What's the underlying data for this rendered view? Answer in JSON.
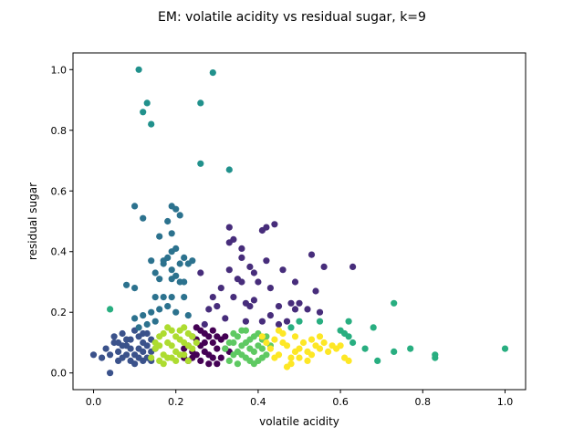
{
  "chart_data": {
    "type": "scatter",
    "title": "EM: volatile acidity vs residual sugar, k=9",
    "xlabel": "volatile acidity",
    "ylabel": "residual sugar",
    "xlim": [
      -0.05,
      1.05
    ],
    "ylim": [
      -0.055,
      1.055
    ],
    "xticks": [
      0.0,
      0.2,
      0.4,
      0.6,
      0.8,
      1.0
    ],
    "yticks": [
      0.0,
      0.2,
      0.4,
      0.6,
      0.8,
      1.0
    ],
    "xtick_labels": [
      "0.0",
      "0.2",
      "0.4",
      "0.6",
      "0.8",
      "1.0"
    ],
    "ytick_labels": [
      "0.0",
      "0.2",
      "0.4",
      "0.6",
      "0.8",
      "1.0"
    ],
    "grid": false,
    "clusters": [
      {
        "color": "#440154",
        "points": [
          [
            0.22,
            0.05
          ],
          [
            0.24,
            0.07
          ],
          [
            0.26,
            0.09
          ],
          [
            0.28,
            0.06
          ],
          [
            0.3,
            0.08
          ],
          [
            0.25,
            0.11
          ],
          [
            0.27,
            0.13
          ],
          [
            0.29,
            0.1
          ],
          [
            0.31,
            0.05
          ],
          [
            0.23,
            0.09
          ],
          [
            0.26,
            0.04
          ],
          [
            0.28,
            0.12
          ],
          [
            0.3,
            0.12
          ],
          [
            0.32,
            0.08
          ],
          [
            0.24,
            0.12
          ],
          [
            0.27,
            0.07
          ],
          [
            0.25,
            0.06
          ],
          [
            0.29,
            0.14
          ],
          [
            0.31,
            0.11
          ],
          [
            0.22,
            0.08
          ],
          [
            0.33,
            0.07
          ],
          [
            0.26,
            0.14
          ],
          [
            0.28,
            0.03
          ],
          [
            0.23,
            0.04
          ],
          [
            0.3,
            0.03
          ],
          [
            0.25,
            0.15
          ],
          [
            0.27,
            0.1
          ],
          [
            0.29,
            0.05
          ],
          [
            0.24,
            0.05
          ],
          [
            0.32,
            0.12
          ]
        ]
      },
      {
        "color": "#472d7b",
        "points": [
          [
            0.27,
            0.16
          ],
          [
            0.3,
            0.22
          ],
          [
            0.32,
            0.18
          ],
          [
            0.34,
            0.25
          ],
          [
            0.36,
            0.3
          ],
          [
            0.33,
            0.43
          ],
          [
            0.33,
            0.48
          ],
          [
            0.34,
            0.44
          ],
          [
            0.36,
            0.38
          ],
          [
            0.38,
            0.35
          ],
          [
            0.36,
            0.41
          ],
          [
            0.41,
            0.47
          ],
          [
            0.42,
            0.48
          ],
          [
            0.44,
            0.49
          ],
          [
            0.42,
            0.37
          ],
          [
            0.46,
            0.34
          ],
          [
            0.49,
            0.3
          ],
          [
            0.5,
            0.23
          ],
          [
            0.49,
            0.21
          ],
          [
            0.53,
            0.39
          ],
          [
            0.56,
            0.35
          ],
          [
            0.63,
            0.35
          ],
          [
            0.54,
            0.27
          ],
          [
            0.55,
            0.2
          ],
          [
            0.43,
            0.28
          ],
          [
            0.45,
            0.22
          ],
          [
            0.38,
            0.22
          ],
          [
            0.39,
            0.24
          ],
          [
            0.4,
            0.3
          ],
          [
            0.41,
            0.17
          ],
          [
            0.37,
            0.17
          ],
          [
            0.26,
            0.33
          ],
          [
            0.29,
            0.25
          ],
          [
            0.35,
            0.31
          ],
          [
            0.37,
            0.23
          ],
          [
            0.43,
            0.19
          ],
          [
            0.48,
            0.23
          ],
          [
            0.52,
            0.21
          ],
          [
            0.31,
            0.28
          ],
          [
            0.39,
            0.33
          ],
          [
            0.45,
            0.16
          ],
          [
            0.47,
            0.17
          ],
          [
            0.28,
            0.21
          ],
          [
            0.33,
            0.34
          ]
        ]
      },
      {
        "color": "#3b528b",
        "points": [
          [
            0.0,
            0.06
          ],
          [
            0.04,
            0.0
          ],
          [
            0.03,
            0.08
          ],
          [
            0.05,
            0.1
          ],
          [
            0.06,
            0.07
          ],
          [
            0.07,
            0.05
          ],
          [
            0.08,
            0.09
          ],
          [
            0.09,
            0.11
          ],
          [
            0.1,
            0.06
          ],
          [
            0.11,
            0.08
          ],
          [
            0.12,
            0.1
          ],
          [
            0.13,
            0.05
          ],
          [
            0.14,
            0.07
          ],
          [
            0.05,
            0.12
          ],
          [
            0.07,
            0.13
          ],
          [
            0.09,
            0.04
          ],
          [
            0.1,
            0.14
          ],
          [
            0.12,
            0.13
          ],
          [
            0.13,
            0.09
          ],
          [
            0.06,
            0.04
          ],
          [
            0.08,
            0.06
          ],
          [
            0.11,
            0.12
          ],
          [
            0.12,
            0.04
          ],
          [
            0.14,
            0.11
          ],
          [
            0.04,
            0.06
          ],
          [
            0.02,
            0.05
          ],
          [
            0.15,
            0.08
          ],
          [
            0.1,
            0.03
          ],
          [
            0.08,
            0.11
          ],
          [
            0.13,
            0.13
          ],
          [
            0.11,
            0.05
          ],
          [
            0.07,
            0.09
          ],
          [
            0.09,
            0.08
          ],
          [
            0.12,
            0.07
          ],
          [
            0.06,
            0.1
          ],
          [
            0.14,
            0.04
          ]
        ]
      },
      {
        "color": "#2c728e",
        "points": [
          [
            0.1,
            0.55
          ],
          [
            0.12,
            0.51
          ],
          [
            0.19,
            0.55
          ],
          [
            0.18,
            0.5
          ],
          [
            0.2,
            0.54
          ],
          [
            0.21,
            0.52
          ],
          [
            0.19,
            0.46
          ],
          [
            0.2,
            0.41
          ],
          [
            0.19,
            0.4
          ],
          [
            0.16,
            0.45
          ],
          [
            0.17,
            0.37
          ],
          [
            0.18,
            0.38
          ],
          [
            0.17,
            0.36
          ],
          [
            0.19,
            0.34
          ],
          [
            0.21,
            0.36
          ],
          [
            0.22,
            0.38
          ],
          [
            0.2,
            0.32
          ],
          [
            0.23,
            0.36
          ],
          [
            0.24,
            0.37
          ],
          [
            0.22,
            0.3
          ],
          [
            0.14,
            0.37
          ],
          [
            0.15,
            0.33
          ],
          [
            0.16,
            0.31
          ],
          [
            0.19,
            0.31
          ],
          [
            0.21,
            0.3
          ],
          [
            0.08,
            0.29
          ],
          [
            0.1,
            0.28
          ],
          [
            0.15,
            0.25
          ],
          [
            0.17,
            0.25
          ],
          [
            0.19,
            0.25
          ],
          [
            0.22,
            0.25
          ],
          [
            0.18,
            0.22
          ],
          [
            0.2,
            0.2
          ],
          [
            0.23,
            0.19
          ],
          [
            0.1,
            0.18
          ],
          [
            0.12,
            0.19
          ],
          [
            0.14,
            0.2
          ],
          [
            0.16,
            0.21
          ],
          [
            0.13,
            0.16
          ],
          [
            0.15,
            0.17
          ],
          [
            0.11,
            0.15
          ]
        ]
      },
      {
        "color": "#21918c",
        "points": [
          [
            0.11,
            1.0
          ],
          [
            0.29,
            0.99
          ],
          [
            0.13,
            0.89
          ],
          [
            0.26,
            0.89
          ],
          [
            0.12,
            0.86
          ],
          [
            0.14,
            0.82
          ],
          [
            0.26,
            0.69
          ],
          [
            0.33,
            0.67
          ]
        ]
      },
      {
        "color": "#28ae80",
        "points": [
          [
            0.04,
            0.21
          ],
          [
            0.48,
            0.15
          ],
          [
            0.5,
            0.17
          ],
          [
            0.55,
            0.17
          ],
          [
            0.6,
            0.14
          ],
          [
            0.62,
            0.17
          ],
          [
            0.61,
            0.13
          ],
          [
            0.62,
            0.12
          ],
          [
            0.68,
            0.15
          ],
          [
            0.73,
            0.23
          ],
          [
            0.66,
            0.08
          ],
          [
            0.69,
            0.04
          ],
          [
            0.73,
            0.07
          ],
          [
            0.77,
            0.08
          ],
          [
            0.83,
            0.06
          ],
          [
            0.83,
            0.05
          ],
          [
            1.0,
            0.08
          ],
          [
            0.63,
            0.1
          ]
        ]
      },
      {
        "color": "#5ec962",
        "points": [
          [
            0.32,
            0.08
          ],
          [
            0.33,
            0.1
          ],
          [
            0.34,
            0.06
          ],
          [
            0.35,
            0.12
          ],
          [
            0.36,
            0.09
          ],
          [
            0.37,
            0.05
          ],
          [
            0.38,
            0.11
          ],
          [
            0.39,
            0.07
          ],
          [
            0.4,
            0.13
          ],
          [
            0.41,
            0.08
          ],
          [
            0.42,
            0.06
          ],
          [
            0.34,
            0.13
          ],
          [
            0.36,
            0.14
          ],
          [
            0.38,
            0.04
          ],
          [
            0.4,
            0.04
          ],
          [
            0.37,
            0.1
          ],
          [
            0.39,
            0.12
          ],
          [
            0.41,
            0.11
          ],
          [
            0.35,
            0.07
          ],
          [
            0.33,
            0.04
          ],
          [
            0.43,
            0.09
          ],
          [
            0.36,
            0.06
          ],
          [
            0.38,
            0.08
          ],
          [
            0.4,
            0.09
          ],
          [
            0.42,
            0.12
          ],
          [
            0.35,
            0.03
          ],
          [
            0.37,
            0.14
          ],
          [
            0.39,
            0.03
          ],
          [
            0.34,
            0.1
          ],
          [
            0.41,
            0.05
          ]
        ]
      },
      {
        "color": "#addc30",
        "points": [
          [
            0.14,
            0.05
          ],
          [
            0.15,
            0.08
          ],
          [
            0.16,
            0.12
          ],
          [
            0.17,
            0.06
          ],
          [
            0.18,
            0.1
          ],
          [
            0.19,
            0.14
          ],
          [
            0.2,
            0.07
          ],
          [
            0.21,
            0.11
          ],
          [
            0.22,
            0.15
          ],
          [
            0.23,
            0.09
          ],
          [
            0.24,
            0.12
          ],
          [
            0.16,
            0.04
          ],
          [
            0.18,
            0.05
          ],
          [
            0.2,
            0.04
          ],
          [
            0.22,
            0.06
          ],
          [
            0.17,
            0.13
          ],
          [
            0.19,
            0.09
          ],
          [
            0.21,
            0.06
          ],
          [
            0.23,
            0.13
          ],
          [
            0.15,
            0.1
          ],
          [
            0.18,
            0.15
          ],
          [
            0.2,
            0.12
          ],
          [
            0.22,
            0.1
          ],
          [
            0.24,
            0.08
          ],
          [
            0.16,
            0.09
          ],
          [
            0.19,
            0.05
          ],
          [
            0.21,
            0.14
          ],
          [
            0.25,
            0.1
          ],
          [
            0.17,
            0.03
          ],
          [
            0.23,
            0.04
          ]
        ]
      },
      {
        "color": "#fde725",
        "points": [
          [
            0.43,
            0.08
          ],
          [
            0.44,
            0.11
          ],
          [
            0.45,
            0.06
          ],
          [
            0.46,
            0.13
          ],
          [
            0.47,
            0.09
          ],
          [
            0.48,
            0.05
          ],
          [
            0.49,
            0.12
          ],
          [
            0.5,
            0.08
          ],
          [
            0.51,
            0.1
          ],
          [
            0.52,
            0.07
          ],
          [
            0.53,
            0.11
          ],
          [
            0.54,
            0.09
          ],
          [
            0.55,
            0.08
          ],
          [
            0.56,
            0.1
          ],
          [
            0.57,
            0.07
          ],
          [
            0.58,
            0.09
          ],
          [
            0.59,
            0.08
          ],
          [
            0.6,
            0.09
          ],
          [
            0.61,
            0.05
          ],
          [
            0.62,
            0.04
          ],
          [
            0.47,
            0.02
          ],
          [
            0.48,
            0.03
          ],
          [
            0.45,
            0.14
          ],
          [
            0.5,
            0.05
          ],
          [
            0.52,
            0.04
          ],
          [
            0.44,
            0.05
          ],
          [
            0.46,
            0.1
          ],
          [
            0.49,
            0.07
          ],
          [
            0.53,
            0.06
          ],
          [
            0.41,
            0.12
          ],
          [
            0.42,
            0.1
          ],
          [
            0.55,
            0.12
          ]
        ]
      }
    ]
  }
}
